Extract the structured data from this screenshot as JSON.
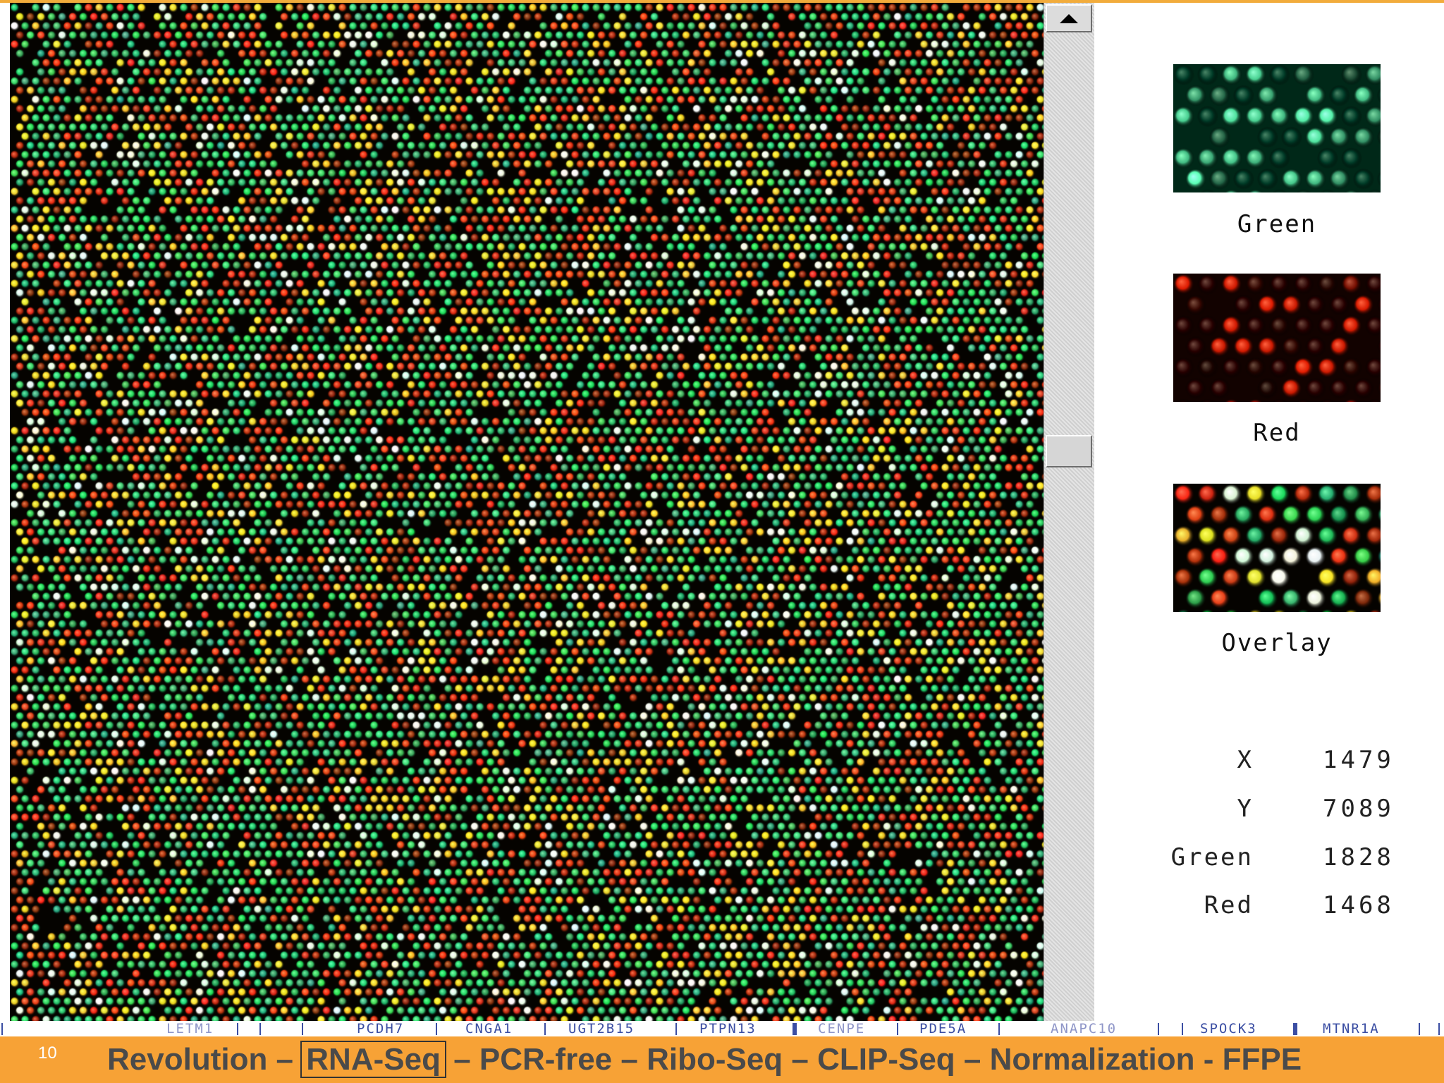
{
  "channels": [
    {
      "label": "Green",
      "color": "#19c47a"
    },
    {
      "label": "Red",
      "color": "#ff2a12"
    },
    {
      "label": "Overlay",
      "color": "#e2c420"
    }
  ],
  "readout": [
    {
      "key": "X",
      "value": "1479"
    },
    {
      "key": "Y",
      "value": "7089"
    },
    {
      "key": "Green",
      "value": "1828"
    },
    {
      "key": "Red",
      "value": "1468"
    }
  ],
  "gene_bar": {
    "genes": [
      "LETM1",
      "PCDH7",
      "CNGA1",
      "UGT2B15",
      "PTPN13",
      "CENPE",
      "PDE5A",
      "ANAPC10",
      "SPOCK3",
      "MTNR1A"
    ]
  },
  "footer": {
    "slide_number": "10",
    "part1": "Revolution –",
    "boxed": "RNA-Seq",
    "part2": "– PCR-free – Ribo-Seq – CLIP-Seq – Normalization - FFPE"
  },
  "scrollbar": {
    "position": 0.42
  },
  "colors": {
    "footer_bg": "#f7a236",
    "gene_text": "#3b4ea3"
  }
}
